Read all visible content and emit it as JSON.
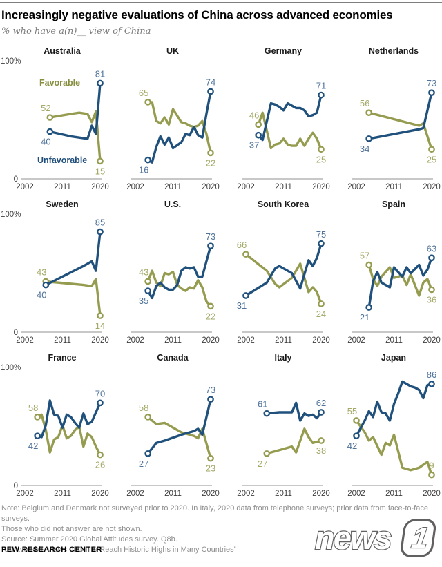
{
  "header": {
    "title": "Increasingly negative evaluations of China across advanced economies",
    "subtitle": "% who have a(n)__ view of China"
  },
  "colors": {
    "favorable_line": "#969C4F",
    "unfavorable_line": "#20517C",
    "favorable_value_label": "#A3A967",
    "unfavorable_value_label": "#4F739A",
    "legend_favorable": "#878F3F",
    "legend_unfavorable": "#1F4E7A",
    "axis": "#a8a8a8"
  },
  "legend": {
    "favorable": "Favorable",
    "unfavorable": "Unfavorable"
  },
  "axis": {
    "y_top_label": "100%",
    "y_bottom_label": "0",
    "x_tick_labels": [
      "2002",
      "2011",
      "2020"
    ],
    "x_tick_years": [
      2002,
      2011,
      2020
    ]
  },
  "chart_data": {
    "type": "line",
    "x_range": [
      2002,
      2020
    ],
    "y_range": [
      0,
      100
    ],
    "series_names": [
      "Favorable",
      "Unfavorable"
    ],
    "panels": [
      {
        "country": "Australia",
        "favorable": [
          [
            2008,
            52
          ],
          [
            2013,
            55
          ],
          [
            2015,
            56
          ],
          [
            2017,
            55
          ],
          [
            2018,
            48
          ],
          [
            2019,
            57
          ],
          [
            2020,
            15
          ]
        ],
        "unfavorable": [
          [
            2008,
            40
          ],
          [
            2013,
            36
          ],
          [
            2015,
            35
          ],
          [
            2017,
            34
          ],
          [
            2018,
            45
          ],
          [
            2019,
            38
          ],
          [
            2020,
            81
          ]
        ]
      },
      {
        "country": "UK",
        "favorable": [
          [
            2005,
            65
          ],
          [
            2006,
            65
          ],
          [
            2007,
            49
          ],
          [
            2008,
            47
          ],
          [
            2009,
            52
          ],
          [
            2010,
            46
          ],
          [
            2011,
            59
          ],
          [
            2013,
            48
          ],
          [
            2014,
            47
          ],
          [
            2015,
            45
          ],
          [
            2016,
            44
          ],
          [
            2017,
            45
          ],
          [
            2018,
            49
          ],
          [
            2019,
            38
          ],
          [
            2020,
            22
          ]
        ],
        "unfavorable": [
          [
            2005,
            16
          ],
          [
            2006,
            14
          ],
          [
            2007,
            27
          ],
          [
            2008,
            36
          ],
          [
            2009,
            29
          ],
          [
            2010,
            35
          ],
          [
            2011,
            26
          ],
          [
            2013,
            31
          ],
          [
            2014,
            38
          ],
          [
            2015,
            37
          ],
          [
            2016,
            44
          ],
          [
            2017,
            37
          ],
          [
            2018,
            35
          ],
          [
            2019,
            55
          ],
          [
            2020,
            74
          ]
        ]
      },
      {
        "country": "Germany",
        "favorable": [
          [
            2005,
            46
          ],
          [
            2006,
            56
          ],
          [
            2008,
            26
          ],
          [
            2009,
            29
          ],
          [
            2010,
            30
          ],
          [
            2011,
            34
          ],
          [
            2012,
            29
          ],
          [
            2013,
            28
          ],
          [
            2014,
            28
          ],
          [
            2015,
            34
          ],
          [
            2016,
            28
          ],
          [
            2017,
            34
          ],
          [
            2018,
            39
          ],
          [
            2019,
            34
          ],
          [
            2020,
            25
          ]
        ],
        "unfavorable": [
          [
            2005,
            37
          ],
          [
            2006,
            33
          ],
          [
            2008,
            64
          ],
          [
            2009,
            63
          ],
          [
            2010,
            61
          ],
          [
            2011,
            58
          ],
          [
            2012,
            64
          ],
          [
            2013,
            62
          ],
          [
            2014,
            60
          ],
          [
            2015,
            60
          ],
          [
            2016,
            58
          ],
          [
            2017,
            53
          ],
          [
            2018,
            54
          ],
          [
            2019,
            56
          ],
          [
            2020,
            71
          ]
        ]
      },
      {
        "country": "Netherlands",
        "favorable": [
          [
            2005,
            56
          ],
          [
            2017,
            45
          ],
          [
            2018,
            47
          ],
          [
            2020,
            25
          ]
        ],
        "unfavorable": [
          [
            2005,
            34
          ],
          [
            2017,
            42
          ],
          [
            2018,
            43
          ],
          [
            2020,
            73
          ]
        ]
      },
      {
        "country": "Sweden",
        "favorable": [
          [
            2007,
            43
          ],
          [
            2016,
            40
          ],
          [
            2018,
            39
          ],
          [
            2019,
            45
          ],
          [
            2020,
            14
          ]
        ],
        "unfavorable": [
          [
            2007,
            40
          ],
          [
            2016,
            56
          ],
          [
            2018,
            60
          ],
          [
            2019,
            52
          ],
          [
            2020,
            85
          ]
        ]
      },
      {
        "country": "U.S.",
        "favorable": [
          [
            2005,
            43
          ],
          [
            2006,
            52
          ],
          [
            2007,
            42
          ],
          [
            2008,
            39
          ],
          [
            2009,
            50
          ],
          [
            2010,
            49
          ],
          [
            2011,
            51
          ],
          [
            2012,
            40
          ],
          [
            2013,
            37
          ],
          [
            2014,
            35
          ],
          [
            2015,
            38
          ],
          [
            2016,
            37
          ],
          [
            2017,
            44
          ],
          [
            2018,
            38
          ],
          [
            2019,
            26
          ],
          [
            2020,
            22
          ]
        ],
        "unfavorable": [
          [
            2005,
            35
          ],
          [
            2006,
            29
          ],
          [
            2007,
            39
          ],
          [
            2008,
            42
          ],
          [
            2009,
            38
          ],
          [
            2010,
            36
          ],
          [
            2011,
            36
          ],
          [
            2012,
            40
          ],
          [
            2013,
            52
          ],
          [
            2014,
            55
          ],
          [
            2015,
            54
          ],
          [
            2016,
            55
          ],
          [
            2017,
            47
          ],
          [
            2018,
            47
          ],
          [
            2019,
            60
          ],
          [
            2020,
            73
          ]
        ]
      },
      {
        "country": "South Korea",
        "favorable": [
          [
            2002,
            66
          ],
          [
            2007,
            52
          ],
          [
            2009,
            41
          ],
          [
            2010,
            38
          ],
          [
            2013,
            46
          ],
          [
            2015,
            58
          ],
          [
            2017,
            34
          ],
          [
            2018,
            38
          ],
          [
            2019,
            34
          ],
          [
            2020,
            24
          ]
        ],
        "unfavorable": [
          [
            2002,
            31
          ],
          [
            2007,
            42
          ],
          [
            2009,
            54
          ],
          [
            2010,
            56
          ],
          [
            2013,
            50
          ],
          [
            2015,
            37
          ],
          [
            2017,
            61
          ],
          [
            2018,
            56
          ],
          [
            2019,
            63
          ],
          [
            2020,
            75
          ]
        ]
      },
      {
        "country": "Spain",
        "favorable": [
          [
            2005,
            57
          ],
          [
            2006,
            45
          ],
          [
            2007,
            39
          ],
          [
            2008,
            47
          ],
          [
            2010,
            55
          ],
          [
            2011,
            46
          ],
          [
            2013,
            48
          ],
          [
            2014,
            40
          ],
          [
            2015,
            49
          ],
          [
            2017,
            31
          ],
          [
            2018,
            42
          ],
          [
            2019,
            45
          ],
          [
            2020,
            36
          ]
        ],
        "unfavorable": [
          [
            2005,
            21
          ],
          [
            2006,
            43
          ],
          [
            2007,
            51
          ],
          [
            2008,
            42
          ],
          [
            2010,
            38
          ],
          [
            2011,
            55
          ],
          [
            2013,
            47
          ],
          [
            2014,
            55
          ],
          [
            2015,
            50
          ],
          [
            2017,
            57
          ],
          [
            2018,
            48
          ],
          [
            2019,
            53
          ],
          [
            2020,
            63
          ]
        ]
      },
      {
        "country": "France",
        "favorable": [
          [
            2005,
            58
          ],
          [
            2006,
            60
          ],
          [
            2007,
            47
          ],
          [
            2008,
            28
          ],
          [
            2009,
            39
          ],
          [
            2010,
            41
          ],
          [
            2011,
            51
          ],
          [
            2012,
            40
          ],
          [
            2013,
            42
          ],
          [
            2014,
            47
          ],
          [
            2015,
            50
          ],
          [
            2016,
            33
          ],
          [
            2017,
            44
          ],
          [
            2018,
            41
          ],
          [
            2019,
            33
          ],
          [
            2020,
            26
          ]
        ],
        "unfavorable": [
          [
            2005,
            42
          ],
          [
            2006,
            41
          ],
          [
            2007,
            51
          ],
          [
            2008,
            72
          ],
          [
            2009,
            60
          ],
          [
            2010,
            59
          ],
          [
            2011,
            49
          ],
          [
            2012,
            60
          ],
          [
            2013,
            58
          ],
          [
            2014,
            53
          ],
          [
            2015,
            49
          ],
          [
            2016,
            61
          ],
          [
            2017,
            52
          ],
          [
            2018,
            54
          ],
          [
            2019,
            62
          ],
          [
            2020,
            70
          ]
        ]
      },
      {
        "country": "Canada",
        "favorable": [
          [
            2005,
            58
          ],
          [
            2007,
            52
          ],
          [
            2009,
            53
          ],
          [
            2013,
            45
          ],
          [
            2016,
            42
          ],
          [
            2017,
            40
          ],
          [
            2018,
            48
          ],
          [
            2020,
            23
          ]
        ],
        "unfavorable": [
          [
            2005,
            27
          ],
          [
            2007,
            36
          ],
          [
            2009,
            38
          ],
          [
            2013,
            43
          ],
          [
            2016,
            46
          ],
          [
            2017,
            48
          ],
          [
            2018,
            43
          ],
          [
            2020,
            73
          ]
        ]
      },
      {
        "country": "Italy",
        "favorable": [
          [
            2007,
            27
          ],
          [
            2010,
            30
          ],
          [
            2013,
            33
          ],
          [
            2014,
            28
          ],
          [
            2016,
            48
          ],
          [
            2017,
            41
          ],
          [
            2018,
            36
          ],
          [
            2020,
            38
          ]
        ],
        "unfavorable": [
          [
            2007,
            61
          ],
          [
            2010,
            62
          ],
          [
            2013,
            62
          ],
          [
            2014,
            70
          ],
          [
            2015,
            55
          ],
          [
            2016,
            61
          ],
          [
            2017,
            59
          ],
          [
            2018,
            60
          ],
          [
            2019,
            57
          ],
          [
            2020,
            62
          ]
        ]
      },
      {
        "country": "Japan",
        "favorable": [
          [
            2002,
            55
          ],
          [
            2004,
            45
          ],
          [
            2005,
            38
          ],
          [
            2006,
            41
          ],
          [
            2008,
            26
          ],
          [
            2009,
            36
          ],
          [
            2010,
            34
          ],
          [
            2011,
            43
          ],
          [
            2013,
            15
          ],
          [
            2015,
            13
          ],
          [
            2017,
            15
          ],
          [
            2019,
            20
          ],
          [
            2020,
            9
          ]
        ],
        "unfavorable": [
          [
            2002,
            42
          ],
          [
            2004,
            55
          ],
          [
            2005,
            63
          ],
          [
            2006,
            58
          ],
          [
            2007,
            71
          ],
          [
            2008,
            62
          ],
          [
            2009,
            61
          ],
          [
            2010,
            55
          ],
          [
            2011,
            69
          ],
          [
            2012,
            78
          ],
          [
            2013,
            88
          ],
          [
            2014,
            86
          ],
          [
            2015,
            84
          ],
          [
            2016,
            83
          ],
          [
            2017,
            81
          ],
          [
            2018,
            74
          ],
          [
            2019,
            85
          ],
          [
            2020,
            86
          ]
        ]
      }
    ]
  },
  "footer": {
    "note_line1": "Note: Belgium and Denmark not surveyed prior to 2020. In Italy, 2020 data from telephone surveys; prior data from face-to-face surveys.",
    "note_line2": "Those who did not answer are not shown.",
    "source_line": "Source: Summer 2020 Global Attitudes survey. Q8b.",
    "quote_line": "“Unfavorable Views of China Reach Historic Highs in Many Countries”",
    "org": "PEW RESEARCH CENTER",
    "logo_word": "news",
    "logo_badge": "1"
  }
}
